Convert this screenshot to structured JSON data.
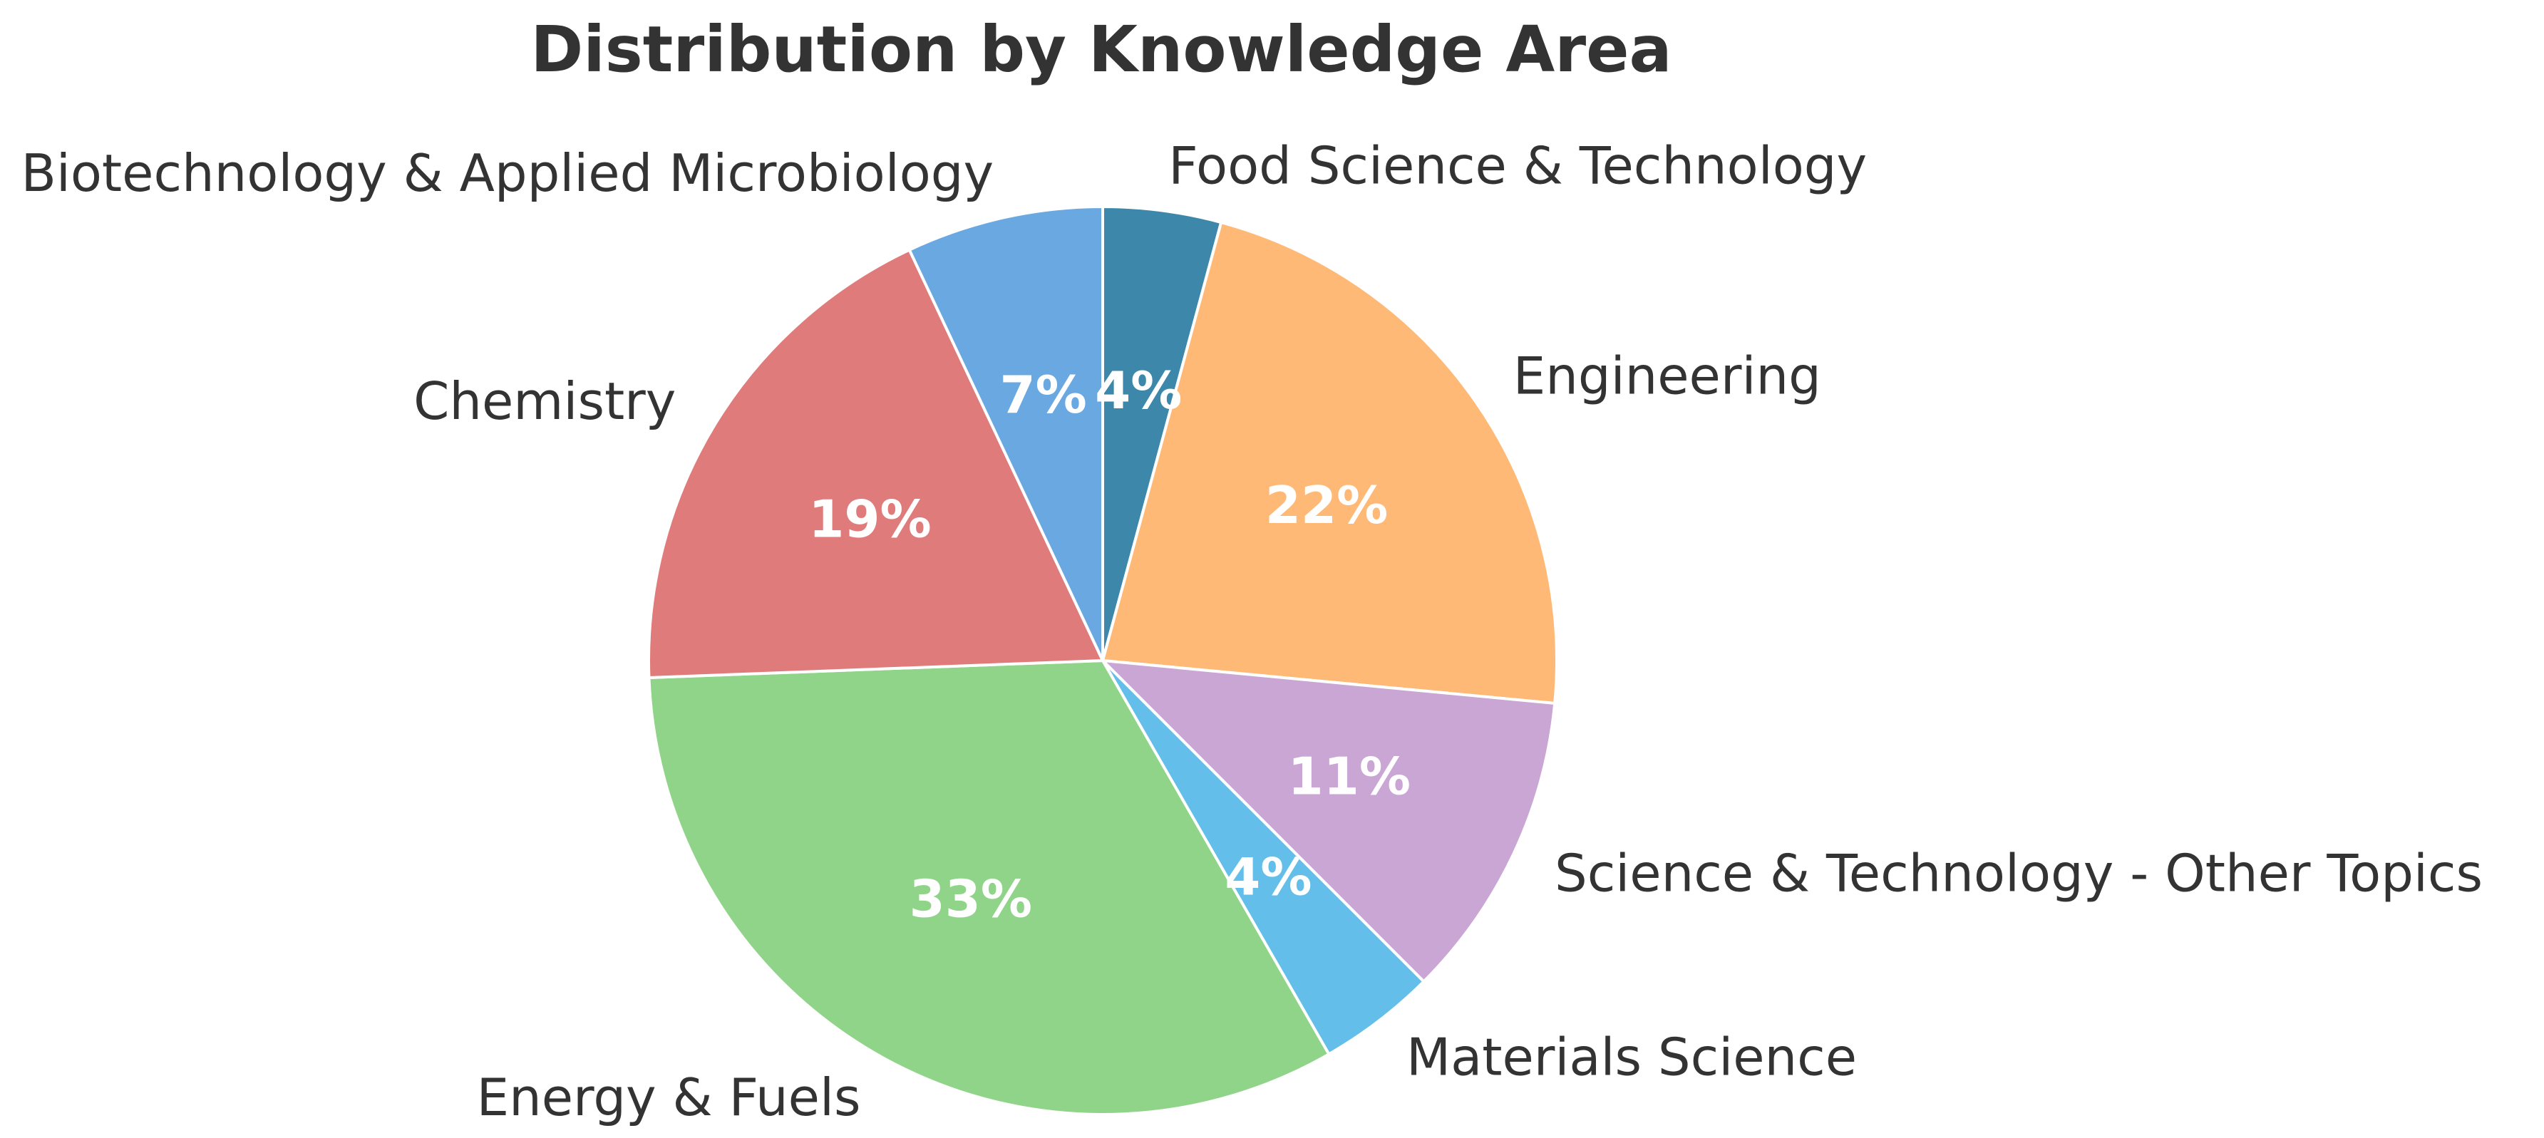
{
  "chart_data": {
    "type": "pie",
    "title": "Distribution by Knowledge Area",
    "start_angle_deg": 90,
    "direction": "clockwise",
    "legend": "none",
    "slices": [
      {
        "label": "Food Science & Technology",
        "value": 4.2,
        "pct_label": "4%",
        "color": "#3d88aa"
      },
      {
        "label": "Engineering",
        "value": 22.3,
        "pct_label": "22%",
        "color": "#ffb977"
      },
      {
        "label": "Science & Technology - Other Topics",
        "value": 11.0,
        "pct_label": "11%",
        "color": "#c9a6d4"
      },
      {
        "label": "Materials Science",
        "value": 4.2,
        "pct_label": "4%",
        "color": "#63bfea"
      },
      {
        "label": "Energy & Fuels",
        "value": 32.7,
        "pct_label": "33%",
        "color": "#90d489"
      },
      {
        "label": "Chemistry",
        "value": 18.6,
        "pct_label": "19%",
        "color": "#e07b7b"
      },
      {
        "label": "Biotechnology & Applied Microbiology",
        "value": 7.0,
        "pct_label": "7%",
        "color": "#6aa8e2"
      }
    ]
  }
}
